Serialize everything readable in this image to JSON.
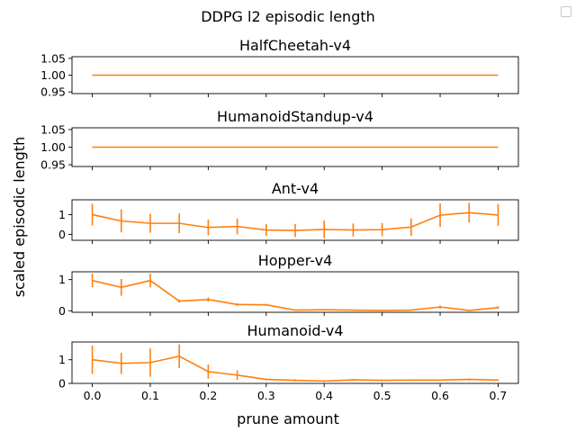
{
  "figure": {
    "suptitle": "DDPG l2 episodic length",
    "ylabel": "scaled episodic length",
    "xlabel": "prune amount",
    "line_color": "#ff7f0e",
    "errbar_color": "#ff7f0e"
  },
  "chart_data": [
    {
      "type": "line",
      "title": "HalfCheetah-v4",
      "x": [
        0.0,
        0.05,
        0.1,
        0.15,
        0.2,
        0.25,
        0.3,
        0.35,
        0.4,
        0.45,
        0.5,
        0.55,
        0.6,
        0.65,
        0.7
      ],
      "y": [
        1,
        1,
        1,
        1,
        1,
        1,
        1,
        1,
        1,
        1,
        1,
        1,
        1,
        1,
        1
      ],
      "yerr": [
        0,
        0,
        0,
        0,
        0,
        0,
        0,
        0,
        0,
        0,
        0,
        0,
        0,
        0,
        0
      ],
      "xlim": [
        -0.035,
        0.735
      ],
      "ylim": [
        0.945,
        1.055
      ],
      "yticks": [
        0.95,
        1.0,
        1.05
      ],
      "ytick_labels": [
        "0.95",
        "1.00",
        "1.05"
      ],
      "xticks": [
        0.0,
        0.1,
        0.2,
        0.3,
        0.4,
        0.5,
        0.6,
        0.7
      ],
      "xtick_labels": []
    },
    {
      "type": "line",
      "title": "HumanoidStandup-v4",
      "x": [
        0.0,
        0.05,
        0.1,
        0.15,
        0.2,
        0.25,
        0.3,
        0.35,
        0.4,
        0.45,
        0.5,
        0.55,
        0.6,
        0.65,
        0.7
      ],
      "y": [
        1,
        1,
        1,
        1,
        1,
        1,
        1,
        1,
        1,
        1,
        1,
        1,
        1,
        1,
        1
      ],
      "yerr": [
        0,
        0,
        0,
        0,
        0,
        0,
        0,
        0,
        0,
        0,
        0,
        0,
        0,
        0,
        0
      ],
      "xlim": [
        -0.035,
        0.735
      ],
      "ylim": [
        0.945,
        1.055
      ],
      "yticks": [
        0.95,
        1.0,
        1.05
      ],
      "ytick_labels": [
        "0.95",
        "1.00",
        "1.05"
      ],
      "xticks": [
        0.0,
        0.1,
        0.2,
        0.3,
        0.4,
        0.5,
        0.6,
        0.7
      ],
      "xtick_labels": []
    },
    {
      "type": "line",
      "title": "Ant-v4",
      "x": [
        0.0,
        0.05,
        0.1,
        0.15,
        0.2,
        0.25,
        0.3,
        0.35,
        0.4,
        0.45,
        0.5,
        0.55,
        0.6,
        0.65,
        0.7
      ],
      "y": [
        1.0,
        0.68,
        0.56,
        0.56,
        0.35,
        0.4,
        0.22,
        0.2,
        0.25,
        0.22,
        0.24,
        0.37,
        0.97,
        1.1,
        0.98
      ],
      "yerr": [
        0.55,
        0.58,
        0.48,
        0.5,
        0.4,
        0.4,
        0.3,
        0.33,
        0.45,
        0.33,
        0.33,
        0.44,
        0.6,
        0.5,
        0.55
      ],
      "xlim": [
        -0.035,
        0.735
      ],
      "ylim": [
        -0.3,
        1.75
      ],
      "yticks": [
        0,
        1
      ],
      "ytick_labels": [
        "0",
        "1"
      ],
      "xticks": [
        0.0,
        0.1,
        0.2,
        0.3,
        0.4,
        0.5,
        0.6,
        0.7
      ],
      "xtick_labels": []
    },
    {
      "type": "line",
      "title": "Hopper-v4",
      "x": [
        0.0,
        0.05,
        0.1,
        0.15,
        0.2,
        0.25,
        0.3,
        0.35,
        0.4,
        0.45,
        0.5,
        0.55,
        0.6,
        0.65,
        0.7
      ],
      "y": [
        0.97,
        0.75,
        0.97,
        0.31,
        0.36,
        0.2,
        0.19,
        0.02,
        0.03,
        0.02,
        0.01,
        0.02,
        0.12,
        0.01,
        0.1
      ],
      "yerr": [
        0.22,
        0.27,
        0.22,
        0.05,
        0.07,
        0.04,
        0.03,
        0.01,
        0.01,
        0.01,
        0.01,
        0.01,
        0.05,
        0.01,
        0.04
      ],
      "xlim": [
        -0.035,
        0.735
      ],
      "ylim": [
        -0.05,
        1.25
      ],
      "yticks": [
        0,
        1
      ],
      "ytick_labels": [
        "0",
        "1"
      ],
      "xticks": [
        0.0,
        0.1,
        0.2,
        0.3,
        0.4,
        0.5,
        0.6,
        0.7
      ],
      "xtick_labels": []
    },
    {
      "type": "line",
      "title": "Humanoid-v4",
      "x": [
        0.0,
        0.05,
        0.1,
        0.15,
        0.2,
        0.25,
        0.3,
        0.35,
        0.4,
        0.45,
        0.5,
        0.55,
        0.6,
        0.65,
        0.7
      ],
      "y": [
        1.0,
        0.85,
        0.88,
        1.15,
        0.5,
        0.35,
        0.17,
        0.13,
        0.1,
        0.15,
        0.13,
        0.14,
        0.14,
        0.17,
        0.14
      ],
      "yerr": [
        0.6,
        0.45,
        0.6,
        0.5,
        0.3,
        0.2,
        0.04,
        0.04,
        0.03,
        0.04,
        0.03,
        0.03,
        0.03,
        0.04,
        0.03
      ],
      "xlim": [
        -0.035,
        0.735
      ],
      "ylim": [
        0,
        1.75
      ],
      "yticks": [
        0,
        1
      ],
      "ytick_labels": [
        "0",
        "1"
      ],
      "xticks": [
        0.0,
        0.1,
        0.2,
        0.3,
        0.4,
        0.5,
        0.6,
        0.7
      ],
      "xtick_labels": [
        "0.0",
        "0.1",
        "0.2",
        "0.3",
        "0.4",
        "0.5",
        "0.6",
        "0.7"
      ]
    }
  ]
}
